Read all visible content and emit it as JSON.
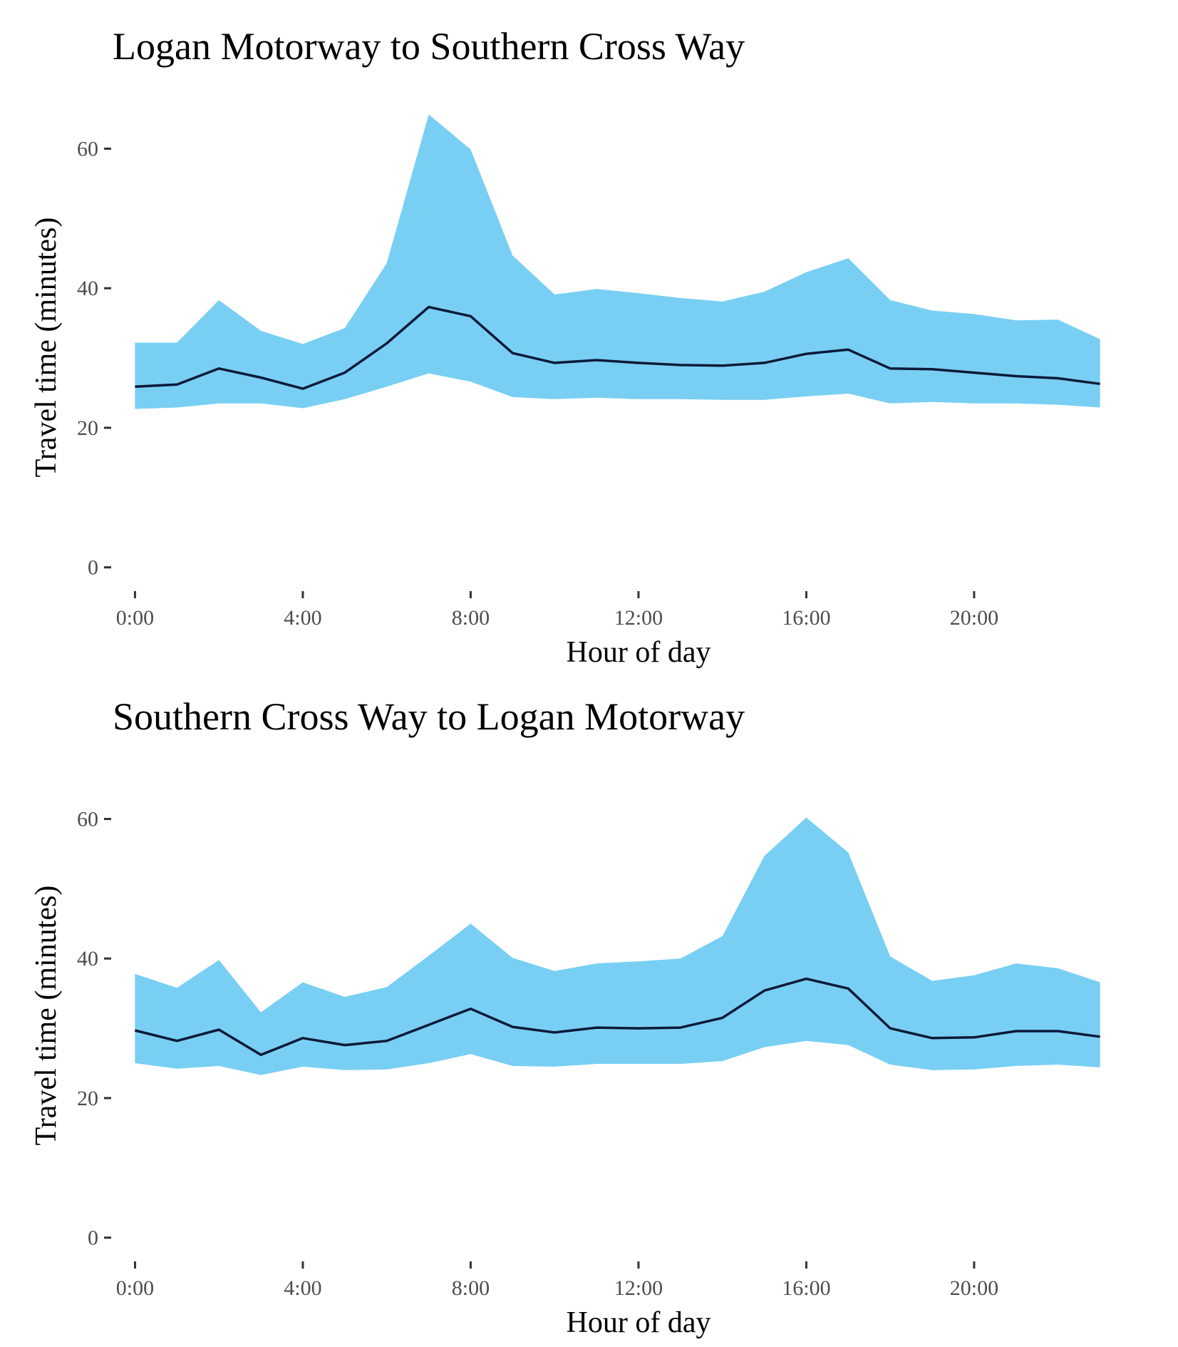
{
  "chart_data": [
    {
      "type": "area",
      "title": "Logan Motorway to Southern Cross Way",
      "xlabel": "Hour of day",
      "ylabel": "Travel time (minutes)",
      "x": [
        0,
        1,
        2,
        3,
        4,
        5,
        6,
        7,
        8,
        9,
        10,
        11,
        12,
        13,
        14,
        15,
        16,
        17,
        18,
        19,
        20,
        21,
        22,
        23
      ],
      "xticks": [
        0,
        4,
        8,
        12,
        16,
        20
      ],
      "xtick_labels": [
        "0:00",
        "4:00",
        "8:00",
        "12:00",
        "16:00",
        "20:00"
      ],
      "xlim": [
        -0.5,
        23.5
      ],
      "yticks": [
        0,
        20,
        40,
        60
      ],
      "ytick_labels": [
        "0",
        "20",
        "40",
        "60"
      ],
      "ylim": [
        -3,
        67
      ],
      "grid": false,
      "legend": "none",
      "band_color": "#79CFF3",
      "line_color": "#0c1a3a",
      "series": [
        {
          "role": "upper",
          "values": [
            32.2,
            32.2,
            38.3,
            33.9,
            32.0,
            34.3,
            43.6,
            64.9,
            59.9,
            44.7,
            39.1,
            39.9,
            39.3,
            38.6,
            38.1,
            39.5,
            42.3,
            44.3,
            38.3,
            36.8,
            36.3,
            35.4,
            35.5,
            32.7
          ]
        },
        {
          "role": "median",
          "values": [
            25.9,
            26.2,
            28.5,
            27.2,
            25.6,
            27.9,
            32.1,
            37.3,
            36.0,
            30.7,
            29.3,
            29.7,
            29.3,
            29.0,
            28.9,
            29.3,
            30.6,
            31.2,
            28.5,
            28.4,
            27.9,
            27.4,
            27.1,
            26.3
          ]
        },
        {
          "role": "lower",
          "values": [
            22.7,
            22.9,
            23.5,
            23.5,
            22.8,
            24.1,
            25.9,
            27.8,
            26.6,
            24.4,
            24.1,
            24.3,
            24.1,
            24.1,
            24.0,
            24.0,
            24.5,
            24.9,
            23.5,
            23.7,
            23.5,
            23.5,
            23.3,
            22.9
          ]
        }
      ]
    },
    {
      "type": "area",
      "title": "Southern Cross Way to Logan Motorway",
      "xlabel": "Hour of day",
      "ylabel": "Travel time (minutes)",
      "x": [
        0,
        1,
        2,
        3,
        4,
        5,
        6,
        7,
        8,
        9,
        10,
        11,
        12,
        13,
        14,
        15,
        16,
        17,
        18,
        19,
        20,
        21,
        22,
        23
      ],
      "xticks": [
        0,
        4,
        8,
        12,
        16,
        20
      ],
      "xtick_labels": [
        "0:00",
        "4:00",
        "8:00",
        "12:00",
        "16:00",
        "20:00"
      ],
      "xlim": [
        -0.5,
        23.5
      ],
      "yticks": [
        0,
        20,
        40,
        60
      ],
      "ytick_labels": [
        "0",
        "20",
        "40",
        "60"
      ],
      "ylim": [
        -3,
        67
      ],
      "grid": false,
      "legend": "none",
      "band_color": "#79CFF3",
      "line_color": "#0c1a3a",
      "series": [
        {
          "role": "upper",
          "values": [
            37.8,
            35.8,
            39.8,
            32.3,
            36.6,
            34.5,
            35.9,
            40.4,
            45.0,
            40.1,
            38.2,
            39.3,
            39.6,
            40.0,
            43.2,
            54.7,
            60.2,
            55.2,
            40.3,
            36.8,
            37.6,
            39.3,
            38.6,
            36.6
          ]
        },
        {
          "role": "median",
          "values": [
            29.7,
            28.2,
            29.8,
            26.2,
            28.6,
            27.6,
            28.2,
            30.5,
            32.8,
            30.2,
            29.4,
            30.1,
            30.0,
            30.1,
            31.5,
            35.4,
            37.1,
            35.7,
            30.0,
            28.6,
            28.7,
            29.6,
            29.6,
            28.8
          ]
        },
        {
          "role": "lower",
          "values": [
            25.0,
            24.2,
            24.6,
            23.3,
            24.5,
            24.0,
            24.1,
            25.0,
            26.3,
            24.6,
            24.5,
            24.9,
            24.9,
            24.9,
            25.3,
            27.3,
            28.2,
            27.6,
            24.8,
            24.0,
            24.1,
            24.6,
            24.8,
            24.4
          ]
        }
      ]
    }
  ]
}
